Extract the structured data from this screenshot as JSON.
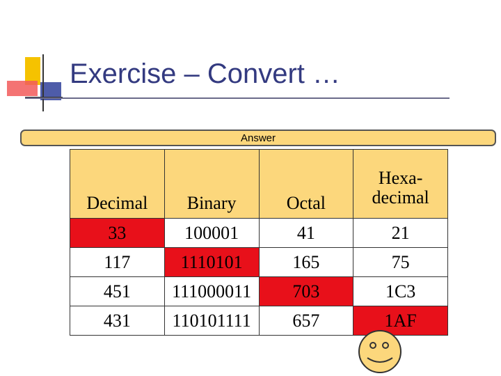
{
  "slide": {
    "title": "Exercise – Convert …",
    "answer_label": "Answer"
  },
  "table": {
    "headers": [
      "Decimal",
      "Binary",
      "Octal",
      "Hexa-\ndecimal"
    ],
    "rows": [
      [
        "33",
        "100001",
        "41",
        "21"
      ],
      [
        "117",
        "1110101",
        "165",
        "75"
      ],
      [
        "451",
        "111000011",
        "703",
        "1C3"
      ],
      [
        "431",
        "110101111",
        "657",
        "1AF"
      ]
    ],
    "highlighted_cells": [
      [
        0,
        0
      ],
      [
        1,
        1
      ],
      [
        2,
        2
      ],
      [
        3,
        3
      ]
    ],
    "header_color": "#fcd77c",
    "highlight_color": "#e8101a"
  }
}
